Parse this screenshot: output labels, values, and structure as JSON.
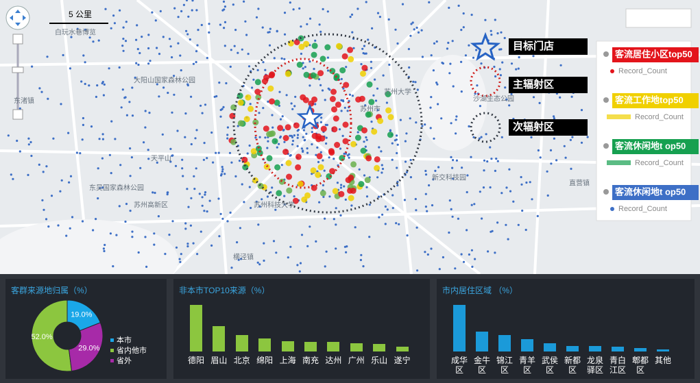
{
  "map": {
    "scale_label": "5 公里",
    "place_labels": [
      "白玩水巷博览",
      "大阳山国家森林公园",
      "东渚镇",
      "苏州高新区",
      "天平山",
      "东吴国家森林公园",
      "苏州科技大学",
      "苏州大学",
      "沙湖生态公园",
      "直营镇",
      "横泾镇",
      "苏州市",
      "新交科技园"
    ],
    "legend_markers": [
      "目标门店",
      "主辐射区",
      "次辐射区"
    ],
    "legend": [
      {
        "title": "客流居住小区top50",
        "item": "Record_Count",
        "color": "#e3141b"
      },
      {
        "title": "客流工作地top50",
        "item": "Record_Count",
        "color": "#f0d000"
      },
      {
        "title": "客流休闲地t op50",
        "item": "Record_Count",
        "color": "#16a050"
      },
      {
        "title": "客流休闲地t op50",
        "item": "Record_Count",
        "color": "#3d6fc6"
      }
    ]
  },
  "chart_data": [
    {
      "type": "pie",
      "title": "客群来源地归属（%）",
      "categories": [
        "本市",
        "省内他市",
        "省外"
      ],
      "values": [
        19.0,
        52.0,
        29.0
      ],
      "value_labels": [
        "19.0%",
        "52.0%",
        "29.0%"
      ],
      "colors": [
        "#1aa7e8",
        "#8cc63f",
        "#a72aa8"
      ]
    },
    {
      "type": "bar",
      "title": "非本市TOP10来源（%）",
      "categories": [
        "德阳",
        "眉山",
        "北京",
        "绵阳",
        "上海",
        "南充",
        "达州",
        "广州",
        "乐山",
        "遂宁"
      ],
      "values": [
        20,
        11,
        7,
        5.5,
        4.3,
        4.2,
        4.1,
        3.5,
        3.3,
        2
      ],
      "color": "#8cc63f"
    },
    {
      "type": "bar",
      "title": "市内居住区域 （%）",
      "categories": [
        "成华区",
        "金牛区",
        "锦江区",
        "青羊区",
        "武侯区",
        "新都区",
        "龙泉驿区",
        "青白江区",
        "郫都区",
        "其他"
      ],
      "values": [
        30,
        13,
        10.5,
        8,
        5.5,
        3.7,
        3.5,
        3,
        2,
        1.5
      ],
      "color": "#1b9ad9"
    }
  ]
}
